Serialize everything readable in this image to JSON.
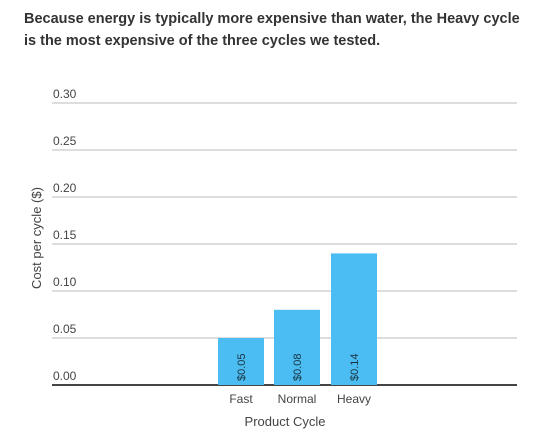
{
  "caption": "Because energy is typically more expensive than water, the Heavy cycle is the most expensive of the three cycles we tested.",
  "chart_data": {
    "type": "bar",
    "categories": [
      "Fast",
      "Normal",
      "Heavy"
    ],
    "values": [
      0.05,
      0.08,
      0.14
    ],
    "data_labels": [
      "$0.05",
      "$0.08",
      "$0.14"
    ],
    "xlabel": "Product Cycle",
    "ylabel": "Cost per cycle ($)",
    "ylim": [
      0,
      0.3
    ],
    "yticks": [
      0.0,
      0.05,
      0.1,
      0.15,
      0.2,
      0.25,
      0.3
    ],
    "ytick_labels": [
      "0.00",
      "0.05",
      "0.10",
      "0.15",
      "0.20",
      "0.25",
      "0.30"
    ],
    "grid": true,
    "bar_color": "#4BBDF2",
    "grid_color": "#BBBBBB",
    "axis_color": "#444444"
  }
}
